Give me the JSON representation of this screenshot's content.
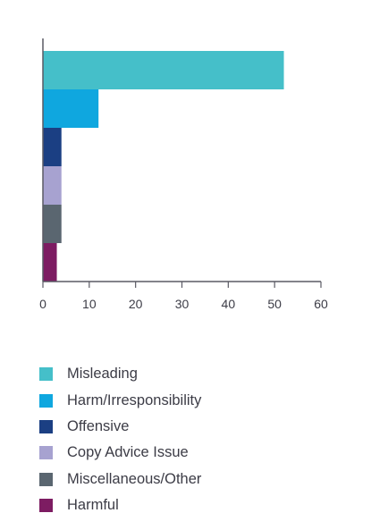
{
  "chart_data": {
    "type": "bar",
    "orientation": "horizontal",
    "title": "",
    "xlabel": "",
    "ylabel": "",
    "categories": [
      "Misleading",
      "Harm/Irresponsibility",
      "Offensive",
      "Copy Advice Issue",
      "Miscellaneous/Other",
      "Harmful"
    ],
    "values": [
      52,
      12,
      4,
      4,
      4,
      3
    ],
    "colors": [
      "#45bfc9",
      "#0fa7df",
      "#1b3f83",
      "#a7a2d0",
      "#5a6670",
      "#7d1c62"
    ],
    "xlim": [
      0,
      60
    ],
    "xticks": [
      "0",
      "10",
      "20",
      "30",
      "40",
      "50",
      "60"
    ],
    "grid": false,
    "legend_position": "bottom"
  }
}
